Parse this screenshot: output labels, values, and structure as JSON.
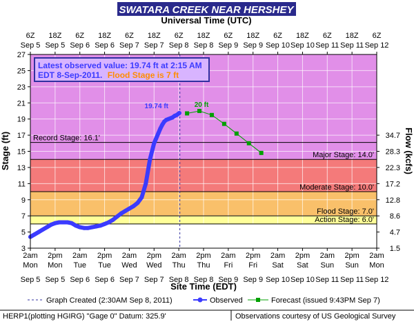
{
  "chart_data": {
    "type": "line",
    "title": "SWATARA CREEK NEAR HERSHEY",
    "top_axis_label": "Universal Time (UTC)",
    "bottom_axis_label": "Site Time (EDT)",
    "ylabel": "Stage (ft)",
    "y2label": "Flow (kcfs)",
    "ylim": [
      3,
      27
    ],
    "xlim_hours_from_sep5_2am": [
      0,
      168
    ],
    "y_ticks": [
      3,
      5,
      7,
      9,
      11,
      13,
      15,
      17,
      19,
      21,
      23,
      25,
      27
    ],
    "flow_ticks": [
      {
        "stage": 3.0,
        "label": "1.5"
      },
      {
        "stage": 5.0,
        "label": "4.7"
      },
      {
        "stage": 7.0,
        "label": "8.6"
      },
      {
        "stage": 9.0,
        "label": "12.8"
      },
      {
        "stage": 11.0,
        "label": "17.2"
      },
      {
        "stage": 13.0,
        "label": "22.3"
      },
      {
        "stage": 15.0,
        "label": "28.3"
      },
      {
        "stage": 17.0,
        "label": "34.7"
      }
    ],
    "bottom_ticks": [
      {
        "h": 0,
        "line1": "2am",
        "line2": "Mon",
        "line3": "Sep 5"
      },
      {
        "h": 12,
        "line1": "2pm",
        "line2": "Mon",
        "line3": "Sep 5"
      },
      {
        "h": 24,
        "line1": "2am",
        "line2": "Tue",
        "line3": "Sep 6"
      },
      {
        "h": 36,
        "line1": "2pm",
        "line2": "Tue",
        "line3": "Sep 6"
      },
      {
        "h": 48,
        "line1": "2am",
        "line2": "Wed",
        "line3": "Sep 7"
      },
      {
        "h": 60,
        "line1": "2pm",
        "line2": "Wed",
        "line3": "Sep 7"
      },
      {
        "h": 72,
        "line1": "2am",
        "line2": "Thu",
        "line3": "Sep 8"
      },
      {
        "h": 84,
        "line1": "2pm",
        "line2": "Thu",
        "line3": "Sep 8"
      },
      {
        "h": 96,
        "line1": "2am",
        "line2": "Fri",
        "line3": "Sep 9"
      },
      {
        "h": 108,
        "line1": "2pm",
        "line2": "Fri",
        "line3": "Sep 9"
      },
      {
        "h": 120,
        "line1": "2am",
        "line2": "Sat",
        "line3": "Sep 10"
      },
      {
        "h": 132,
        "line1": "2pm",
        "line2": "Sat",
        "line3": "Sep 10"
      },
      {
        "h": 144,
        "line1": "2am",
        "line2": "Sun",
        "line3": "Sep 11"
      },
      {
        "h": 156,
        "line1": "2pm",
        "line2": "Sun",
        "line3": "Sep 11"
      },
      {
        "h": 168,
        "line1": "2am",
        "line2": "Mon",
        "line3": "Sep 12"
      }
    ],
    "top_ticks": [
      {
        "h": 0,
        "line1": "6Z",
        "line2": "Sep 5"
      },
      {
        "h": 12,
        "line1": "18Z",
        "line2": "Sep 5"
      },
      {
        "h": 24,
        "line1": "6Z",
        "line2": "Sep 6"
      },
      {
        "h": 36,
        "line1": "18Z",
        "line2": "Sep 6"
      },
      {
        "h": 48,
        "line1": "6Z",
        "line2": "Sep 7"
      },
      {
        "h": 60,
        "line1": "18Z",
        "line2": "Sep 7"
      },
      {
        "h": 72,
        "line1": "6Z",
        "line2": "Sep 8"
      },
      {
        "h": 84,
        "line1": "18Z",
        "line2": "Sep 8"
      },
      {
        "h": 96,
        "line1": "6Z",
        "line2": "Sep 9"
      },
      {
        "h": 108,
        "line1": "18Z",
        "line2": "Sep 9"
      },
      {
        "h": 120,
        "line1": "6Z",
        "line2": "Sep 10"
      },
      {
        "h": 132,
        "line1": "18Z",
        "line2": "Sep 10"
      },
      {
        "h": 144,
        "line1": "6Z",
        "line2": "Sep 11"
      },
      {
        "h": 156,
        "line1": "18Z",
        "line2": "Sep 11"
      },
      {
        "h": 168,
        "line1": "6Z",
        "line2": "Sep 12"
      }
    ],
    "bands": [
      {
        "name": "major",
        "from": 14.0,
        "to": 27.0,
        "color": "#e18fe8"
      },
      {
        "name": "moderate",
        "from": 10.0,
        "to": 14.0,
        "color": "#f47a7a"
      },
      {
        "name": "minor",
        "from": 7.0,
        "to": 10.0,
        "color": "#f9c06a"
      },
      {
        "name": "action",
        "from": 6.0,
        "to": 7.0,
        "color": "#ffff99"
      }
    ],
    "stage_lines": [
      {
        "value": 16.1,
        "label": "Record Stage: 16.1'",
        "side": "left"
      },
      {
        "value": 14.0,
        "label": "Major Stage: 14.0'",
        "side": "right"
      },
      {
        "value": 10.0,
        "label": "Moderate Stage: 10.0'",
        "side": "right"
      },
      {
        "value": 7.0,
        "label": "Flood Stage: 7.0'",
        "side": "right"
      },
      {
        "value": 6.0,
        "label": "Action Stage: 6.0'",
        "side": "right"
      }
    ],
    "graph_created_h": 72.5,
    "series": [
      {
        "name": "Observed",
        "color": "#3b3bff",
        "x": [
          0,
          2,
          4,
          6,
          8,
          10,
          12,
          14,
          16,
          18,
          20,
          22,
          24,
          26,
          28,
          30,
          32,
          34,
          36,
          38,
          40,
          42,
          44,
          46,
          48,
          50,
          52,
          54,
          56,
          58,
          60,
          61,
          62,
          63,
          64,
          65,
          66,
          67,
          68,
          69,
          70,
          71,
          72,
          72.25
        ],
        "y": [
          4.4,
          4.7,
          5.0,
          5.3,
          5.6,
          5.9,
          6.1,
          6.2,
          6.2,
          6.2,
          6.1,
          5.8,
          5.6,
          5.5,
          5.5,
          5.6,
          5.7,
          5.8,
          6.0,
          6.2,
          6.5,
          6.9,
          7.3,
          7.6,
          7.9,
          8.2,
          8.6,
          9.3,
          11.0,
          14.0,
          16.0,
          16.6,
          17.2,
          17.8,
          18.3,
          18.7,
          18.9,
          19.0,
          19.1,
          19.2,
          19.4,
          19.5,
          19.7,
          19.74
        ]
      },
      {
        "name": "Forecast (issued 9:43PM Sep 7)",
        "color": "#00a000",
        "x": [
          76,
          82,
          88,
          94,
          100,
          106,
          112
        ],
        "y": [
          19.7,
          20.0,
          19.5,
          18.4,
          17.2,
          16.0,
          14.8
        ]
      }
    ],
    "annotations": {
      "observed_label": "19.74 ft",
      "forecast_label": "20 ft"
    },
    "callout": {
      "line1": "Latest observed value: 19.74 ft at 2:15 AM",
      "line2": "EDT 8-Sep-2011.",
      "line2_flood": "Flood Stage is 7 ft"
    },
    "legend": {
      "created": "Graph Created (2:30AM Sep 8, 2011)",
      "observed": "Observed",
      "forecast": "Forecast (issued 9:43PM Sep 7)"
    },
    "footer": {
      "left": "HERP1(plotting HGIRG) \"Gage 0\" Datum: 325.9'",
      "right": "Observations courtesy of US Geological Survey"
    },
    "colors": {
      "title_bg": "#2a2a8c",
      "title_text": "#ffffff",
      "observed": "#3b3bff",
      "forecast": "#00a000",
      "callout_text": "#3b3bff",
      "callout_flood": "#ff8c00"
    }
  }
}
